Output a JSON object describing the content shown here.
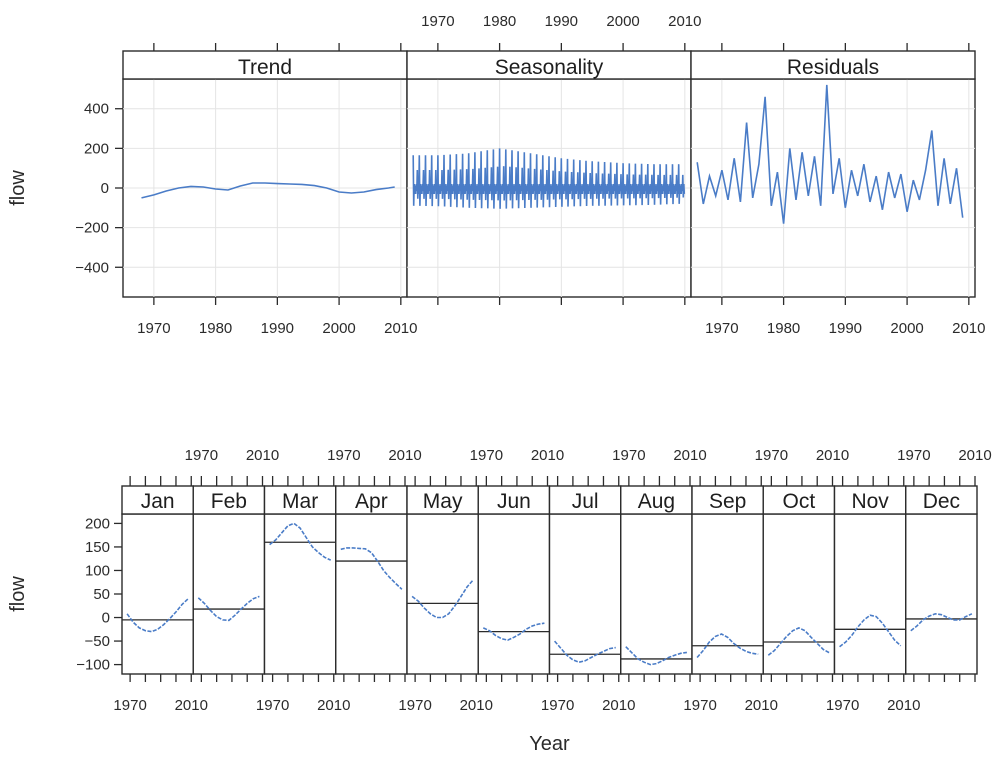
{
  "chart_data": [
    {
      "type": "line",
      "ylabel": "flow",
      "ylim": [
        -550,
        550
      ],
      "yticks": [
        -400,
        -200,
        0,
        200,
        400
      ],
      "xlim": [
        1965,
        2011
      ],
      "xticks": [
        1970,
        1980,
        1990,
        2000,
        2010
      ],
      "grid": true,
      "panels": [
        {
          "title": "Trend",
          "x": [
            1968,
            1970,
            1972,
            1974,
            1976,
            1978,
            1980,
            1982,
            1984,
            1986,
            1988,
            1990,
            1992,
            1994,
            1996,
            1998,
            2000,
            2002,
            2004,
            2006,
            2008,
            2009
          ],
          "values": [
            -50,
            -35,
            -15,
            0,
            8,
            5,
            -5,
            -10,
            10,
            25,
            25,
            22,
            20,
            18,
            12,
            0,
            -20,
            -25,
            -20,
            -8,
            0,
            5
          ]
        },
        {
          "title": "Seasonality",
          "x_range": [
            1966,
            2009
          ],
          "annual_max": [
            [
              1966,
              165
            ],
            [
              1970,
              165
            ],
            [
              1975,
              175
            ],
            [
              1980,
              200
            ],
            [
              1985,
              175
            ],
            [
              1990,
              150
            ],
            [
              1995,
              135
            ],
            [
              2000,
              125
            ],
            [
              2005,
              120
            ],
            [
              2009,
              120
            ]
          ],
          "annual_min": [
            [
              1966,
              -90
            ],
            [
              1970,
              -92
            ],
            [
              1975,
              -100
            ],
            [
              1980,
              -105
            ],
            [
              1985,
              -100
            ],
            [
              1990,
              -95
            ],
            [
              1995,
              -90
            ],
            [
              2000,
              -88
            ],
            [
              2005,
              -85
            ],
            [
              2009,
              -80
            ]
          ],
          "dense_band": [
            -30,
            20
          ]
        },
        {
          "title": "Residuals",
          "x": [
            1966,
            1967,
            1968,
            1969,
            1970,
            1971,
            1972,
            1973,
            1974,
            1975,
            1976,
            1977,
            1978,
            1979,
            1980,
            1981,
            1982,
            1983,
            1984,
            1985,
            1986,
            1987,
            1988,
            1989,
            1990,
            1991,
            1992,
            1993,
            1994,
            1995,
            1996,
            1997,
            1998,
            1999,
            2000,
            2001,
            2002,
            2003,
            2004,
            2005,
            2006,
            2007,
            2008,
            2009
          ],
          "values": [
            130,
            -80,
            60,
            -40,
            90,
            -60,
            150,
            -70,
            330,
            -50,
            120,
            460,
            -90,
            80,
            -180,
            200,
            -60,
            180,
            -40,
            160,
            -90,
            520,
            -30,
            150,
            -100,
            90,
            -40,
            120,
            -70,
            60,
            -110,
            80,
            -50,
            70,
            -120,
            40,
            -60,
            90,
            290,
            -90,
            150,
            -80,
            100,
            -150
          ]
        }
      ]
    },
    {
      "type": "line",
      "ylabel": "flow",
      "xlabel": "Year",
      "ylim": [
        -120,
        220
      ],
      "yticks": [
        -100,
        -50,
        0,
        50,
        100,
        150,
        200
      ],
      "xlim": [
        1966,
        2010
      ],
      "xticks": [
        1970,
        2010
      ],
      "panels": [
        {
          "title": "Jan",
          "mean": -5,
          "x": [
            1968,
            1972,
            1976,
            1980,
            1984,
            1988,
            1992,
            1996,
            2000,
            2004,
            2008
          ],
          "values": [
            8,
            -10,
            -22,
            -28,
            -30,
            -25,
            -15,
            -2,
            12,
            28,
            40
          ]
        },
        {
          "title": "Feb",
          "mean": 18,
          "x": [
            1968,
            1972,
            1976,
            1980,
            1984,
            1988,
            1992,
            1996,
            2000,
            2004,
            2008
          ],
          "values": [
            42,
            30,
            15,
            2,
            -5,
            -6,
            5,
            18,
            30,
            40,
            45
          ]
        },
        {
          "title": "Mar",
          "mean": 160,
          "x": [
            1968,
            1972,
            1976,
            1980,
            1984,
            1988,
            1992,
            1996,
            2000,
            2004,
            2008
          ],
          "values": [
            155,
            165,
            180,
            195,
            200,
            190,
            170,
            150,
            138,
            128,
            122
          ]
        },
        {
          "title": "Apr",
          "mean": 120,
          "x": [
            1968,
            1972,
            1976,
            1980,
            1984,
            1988,
            1992,
            1996,
            2000,
            2004,
            2008
          ],
          "values": [
            145,
            148,
            148,
            147,
            146,
            138,
            120,
            100,
            85,
            72,
            60
          ]
        },
        {
          "title": "May",
          "mean": 30,
          "x": [
            1968,
            1972,
            1976,
            1980,
            1984,
            1988,
            1992,
            1996,
            2000,
            2004,
            2008
          ],
          "values": [
            45,
            35,
            20,
            8,
            0,
            0,
            8,
            25,
            45,
            65,
            80
          ]
        },
        {
          "title": "Jun",
          "mean": -30,
          "x": [
            1968,
            1972,
            1976,
            1980,
            1984,
            1988,
            1992,
            1996,
            2000,
            2004,
            2008
          ],
          "values": [
            -22,
            -28,
            -38,
            -45,
            -48,
            -42,
            -35,
            -25,
            -18,
            -14,
            -12
          ]
        },
        {
          "title": "Jul",
          "mean": -78,
          "x": [
            1968,
            1972,
            1976,
            1980,
            1984,
            1988,
            1992,
            1996,
            2000,
            2004,
            2008
          ],
          "values": [
            -50,
            -65,
            -80,
            -90,
            -95,
            -92,
            -85,
            -78,
            -72,
            -66,
            -64
          ]
        },
        {
          "title": "Aug",
          "mean": -88,
          "x": [
            1968,
            1972,
            1976,
            1980,
            1984,
            1988,
            1992,
            1996,
            2000,
            2004,
            2008
          ],
          "values": [
            -62,
            -75,
            -88,
            -95,
            -100,
            -98,
            -92,
            -85,
            -80,
            -76,
            -74
          ]
        },
        {
          "title": "Sep",
          "mean": -60,
          "x": [
            1968,
            1972,
            1976,
            1980,
            1984,
            1988,
            1992,
            1996,
            2000,
            2004,
            2008
          ],
          "values": [
            -85,
            -70,
            -52,
            -40,
            -35,
            -42,
            -55,
            -65,
            -72,
            -76,
            -78
          ]
        },
        {
          "title": "Oct",
          "mean": -52,
          "x": [
            1968,
            1972,
            1976,
            1980,
            1984,
            1988,
            1992,
            1996,
            2000,
            2004,
            2008
          ],
          "values": [
            -80,
            -70,
            -55,
            -40,
            -28,
            -22,
            -28,
            -42,
            -55,
            -68,
            -75
          ]
        },
        {
          "title": "Nov",
          "mean": -25,
          "x": [
            1968,
            1972,
            1976,
            1980,
            1984,
            1988,
            1992,
            1996,
            2000,
            2004,
            2008
          ],
          "values": [
            -62,
            -52,
            -38,
            -20,
            -5,
            5,
            2,
            -12,
            -30,
            -48,
            -60
          ]
        },
        {
          "title": "Dec",
          "mean": -3,
          "x": [
            1968,
            1972,
            1976,
            1980,
            1984,
            1988,
            1992,
            1996,
            2000,
            2004,
            2008
          ],
          "values": [
            -28,
            -18,
            -5,
            3,
            8,
            6,
            0,
            -5,
            -5,
            2,
            8
          ]
        }
      ]
    }
  ]
}
